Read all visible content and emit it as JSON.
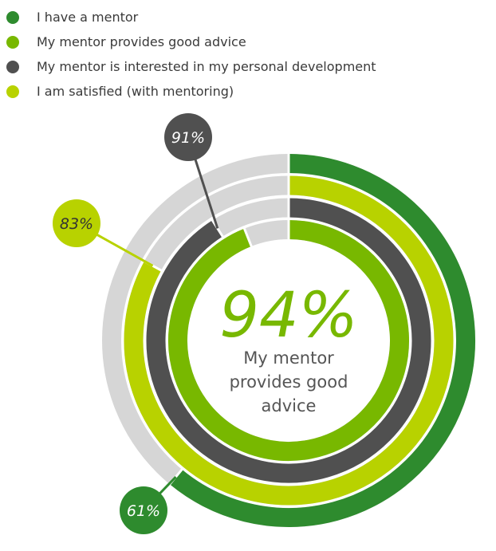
{
  "chart_data": {
    "type": "radial-bar",
    "title": "",
    "series": [
      {
        "name": "I have a mentor",
        "value": 61,
        "label": "61%",
        "color": "#2e8b2e"
      },
      {
        "name": "My mentor provides good advice",
        "value": 94,
        "label": "94%",
        "color": "#78b800"
      },
      {
        "name": "My mentor is interested in my personal development",
        "value": 91,
        "label": "91%",
        "color": "#505050"
      },
      {
        "name": "I am satisfied (with mentoring)",
        "value": 83,
        "label": "83%",
        "color": "#b8d200"
      }
    ],
    "ring_order_outer_to_inner": [
      0,
      3,
      2,
      1
    ],
    "track_color": "#d6d6d6",
    "center": {
      "value": "94%",
      "lines": [
        "My mentor",
        "provides good",
        "advice"
      ]
    }
  }
}
